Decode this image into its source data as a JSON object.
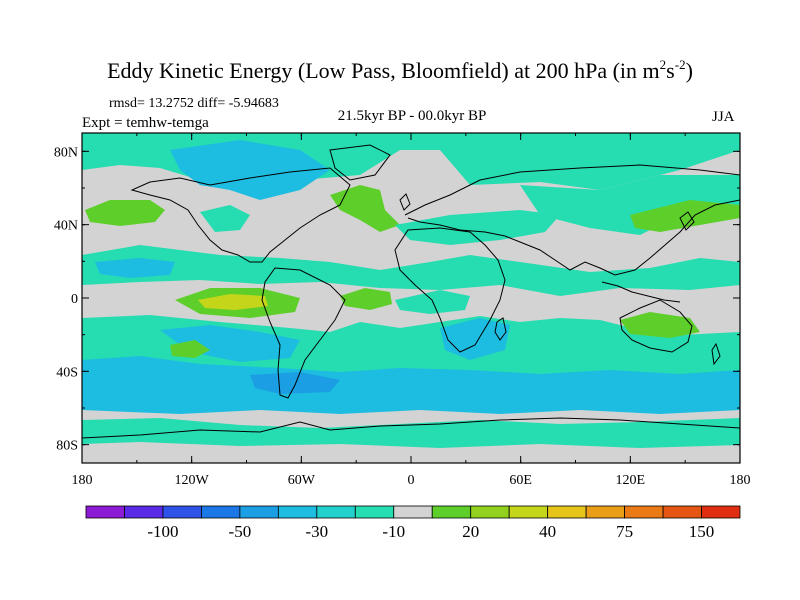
{
  "title": {
    "main": "Eddy Kinetic Energy (Low Pass, Bloomfield) at 200 hPa (in m",
    "sup1": "2",
    "mid": "s",
    "sup2": "-2",
    "end": ")"
  },
  "stats": "rmsd= 13.2752 diff= -5.94683",
  "experiment": "Expt = temhw-temga",
  "period": "21.5kyr BP - 00.0kyr BP",
  "season": "JJA",
  "axes": {
    "lat_ticks": [
      "80N",
      "40N",
      "0",
      "40S",
      "80S"
    ],
    "lon_ticks": [
      "180",
      "120W",
      "60W",
      "0",
      "60E",
      "120E",
      "180"
    ]
  },
  "colorbar": {
    "colors": [
      "#8c1bd6",
      "#5a2be6",
      "#2f53e8",
      "#1c78e6",
      "#1b9ee3",
      "#1cbde0",
      "#22d0cc",
      "#26dcb1",
      "#d3d3d3",
      "#5ecf2a",
      "#92d21e",
      "#c5d61a",
      "#e7c419",
      "#ea9e18",
      "#ea7a16",
      "#e55614",
      "#e02e10"
    ],
    "labels": [
      {
        "text": "-100",
        "boundary": 2
      },
      {
        "text": "-50",
        "boundary": 4
      },
      {
        "text": "-30",
        "boundary": 6
      },
      {
        "text": "-10",
        "boundary": 8
      },
      {
        "text": "20",
        "boundary": 10
      },
      {
        "text": "40",
        "boundary": 12
      },
      {
        "text": "75",
        "boundary": 14
      },
      {
        "text": "150",
        "boundary": 16
      }
    ]
  },
  "palette": {
    "neutral": "#d3d3d3",
    "teal": "#26dcb1",
    "cyan": "#1cbde0",
    "blue": "#1b9ee3",
    "green": "#5ecf2a",
    "yellowgreen": "#c5d61a",
    "coast": "#000000"
  }
}
